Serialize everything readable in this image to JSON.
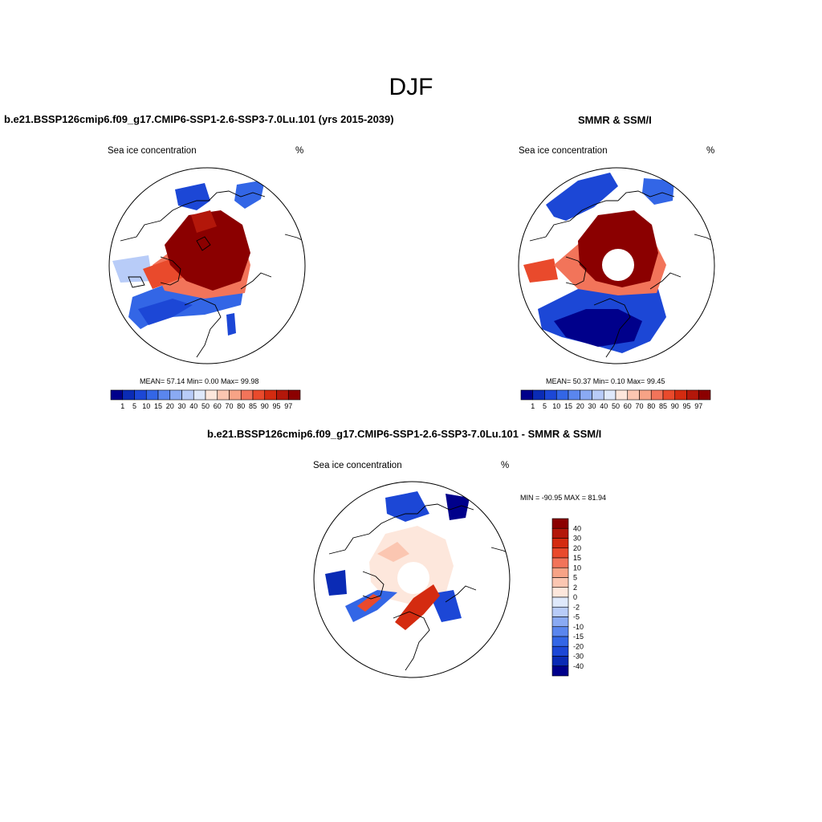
{
  "title": "DJF",
  "panels": [
    {
      "title": "b.e21.BSSP126cmip6.f09_g17.CMIP6-SSP1-2.6-SSP3-7.0Lu.101 (yrs 2015-2039)",
      "left_label": "Sea ice concentration",
      "right_label": "%",
      "stats": "MEAN=  57.14  Min=   0.00  Max=  99.98"
    },
    {
      "title": "SMMR & SSM/I",
      "left_label": "Sea ice concentration",
      "right_label": "%",
      "stats": "MEAN=  50.37  Min=   0.10  Max=  99.45"
    },
    {
      "title": "b.e21.BSSP126cmip6.f09_g17.CMIP6-SSP1-2.6-SSP3-7.0Lu.101 - SMMR & SSM/I",
      "left_label": "Sea ice concentration",
      "right_label": "%",
      "stats": "MIN = -90.95 MAX =  81.94"
    }
  ],
  "colorbar_conc": {
    "labels": [
      "1",
      "5",
      "10",
      "15",
      "20",
      "30",
      "40",
      "50",
      "60",
      "70",
      "80",
      "85",
      "90",
      "95",
      "97"
    ],
    "colors": [
      "#00008b",
      "#0a2bb5",
      "#1c47d6",
      "#3366e6",
      "#5a86ee",
      "#8aaaf3",
      "#b8ccf8",
      "#dfe9fb",
      "#fde7dc",
      "#fbc6b1",
      "#f7a386",
      "#f2745a",
      "#e94a2c",
      "#d42b10",
      "#b3170a",
      "#8b0000"
    ]
  },
  "colorbar_diff": {
    "labels": [
      "40",
      "30",
      "20",
      "15",
      "10",
      "5",
      "2",
      "0",
      "-2",
      "-5",
      "-10",
      "-15",
      "-20",
      "-30",
      "-40"
    ],
    "colors": [
      "#8b0000",
      "#b3170a",
      "#d42b10",
      "#e94a2c",
      "#f2745a",
      "#f7a386",
      "#fbc6b1",
      "#fde7dc",
      "#dfe9fb",
      "#b8ccf8",
      "#8aaaf3",
      "#5a86ee",
      "#3366e6",
      "#1c47d6",
      "#0a2bb5",
      "#00008b"
    ]
  }
}
